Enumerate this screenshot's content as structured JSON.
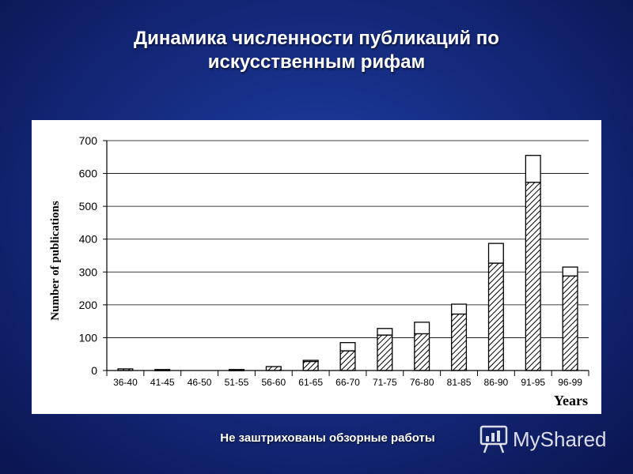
{
  "slide": {
    "title_line1": "Динамика численности публикаций по",
    "title_line2": "искусственным рифам",
    "footnote": "Не заштрихованы обзорные работы",
    "watermark": "MyShared",
    "watermark_icon": "presentation-board-icon"
  },
  "chart_data": {
    "type": "bar",
    "stacked": true,
    "title": "",
    "xlabel": "Years",
    "ylabel": "Number of publications",
    "ylim": [
      0,
      700
    ],
    "yticks": [
      0,
      100,
      200,
      300,
      400,
      500,
      600,
      700
    ],
    "grid": true,
    "legend": "none",
    "categories": [
      "36-40",
      "41-45",
      "46-50",
      "51-55",
      "56-60",
      "61-65",
      "66-70",
      "71-75",
      "76-80",
      "81-85",
      "86-90",
      "91-95",
      "96-99"
    ],
    "series": [
      {
        "fill": "hatched",
        "values": [
          5,
          3,
          0,
          3,
          12,
          28,
          60,
          108,
          112,
          172,
          327,
          573,
          288
        ]
      },
      {
        "fill": "white",
        "values": [
          0,
          0,
          0,
          0,
          0,
          3,
          25,
          20,
          35,
          30,
          60,
          82,
          27
        ]
      }
    ]
  }
}
